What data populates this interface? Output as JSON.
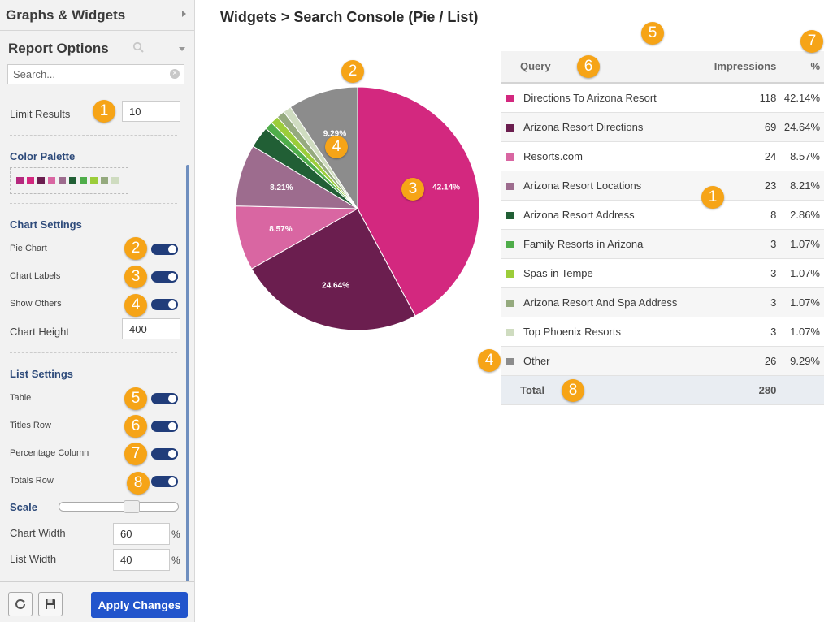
{
  "sidebar": {
    "header_title": "Graphs & Widgets",
    "report_options_title": "Report Options",
    "search_placeholder": "Search...",
    "limit_results": {
      "label": "Limit Results",
      "value": "10"
    },
    "color_palette": {
      "title": "Color Palette",
      "colors": [
        "#b5297e",
        "#d3287f",
        "#6b1e4f",
        "#d966a2",
        "#9d6c8e",
        "#215f35",
        "#4fad4a",
        "#9ccd3a",
        "#95aa7e",
        "#cfdcc0"
      ]
    },
    "chart_settings": {
      "title": "Chart Settings",
      "pie_chart": "Pie Chart",
      "chart_labels": "Chart Labels",
      "show_others": "Show Others",
      "chart_height_label": "Chart Height",
      "chart_height_value": "400"
    },
    "list_settings": {
      "title": "List Settings",
      "table": "Table",
      "titles_row": "Titles Row",
      "percentage_column": "Percentage Column",
      "totals_row": "Totals Row",
      "scale_label": "Scale",
      "scale_value": 0.6,
      "chart_width_label": "Chart Width",
      "chart_width_value": "60",
      "list_width_label": "List Width",
      "list_width_value": "40",
      "pct_sign": "%"
    },
    "apply_label": "Apply Changes"
  },
  "main": {
    "title": "Widgets > Search Console (Pie / List)"
  },
  "badges": {
    "n1": "1",
    "n2": "2",
    "n3": "3",
    "n4": "4",
    "n5": "5",
    "n6": "6",
    "n7": "7",
    "n8": "8"
  },
  "chart_data": {
    "type": "pie",
    "categories": [
      "Directions To Arizona Resort",
      "Arizona Resort Directions",
      "Resorts.com",
      "Arizona Resort Locations",
      "Arizona Resort Address",
      "Family Resorts in Arizona",
      "Spas in Tempe",
      "Arizona Resort And Spa Address",
      "Top Phoenix Resorts",
      "Other"
    ],
    "values": [
      118,
      69,
      24,
      23,
      8,
      3,
      3,
      3,
      3,
      26
    ],
    "colors": [
      "#d3287f",
      "#6b1e4f",
      "#d966a2",
      "#9d6c8e",
      "#215f35",
      "#4fad4a",
      "#9ccd3a",
      "#95aa7e",
      "#cfdcc0",
      "#8c8c8c"
    ],
    "labels": [
      "42.14%",
      "24.64%",
      "8.57%",
      "8.21%",
      "",
      "",
      "",
      "",
      "",
      "9.29%"
    ]
  },
  "table": {
    "headers": {
      "query": "Query",
      "impressions": "Impressions",
      "pct": "%"
    },
    "rows": [
      {
        "query": "Directions To Arizona Resort",
        "impressions": "118",
        "pct": "42.14%",
        "color": "#d3287f"
      },
      {
        "query": "Arizona Resort Directions",
        "impressions": "69",
        "pct": "24.64%",
        "color": "#6b1e4f"
      },
      {
        "query": "Resorts.com",
        "impressions": "24",
        "pct": "8.57%",
        "color": "#d966a2"
      },
      {
        "query": "Arizona Resort Locations",
        "impressions": "23",
        "pct": "8.21%",
        "color": "#9d6c8e"
      },
      {
        "query": "Arizona Resort Address",
        "impressions": "8",
        "pct": "2.86%",
        "color": "#215f35"
      },
      {
        "query": "Family Resorts in Arizona",
        "impressions": "3",
        "pct": "1.07%",
        "color": "#4fad4a"
      },
      {
        "query": "Spas in Tempe",
        "impressions": "3",
        "pct": "1.07%",
        "color": "#9ccd3a"
      },
      {
        "query": "Arizona Resort And Spa Address",
        "impressions": "3",
        "pct": "1.07%",
        "color": "#95aa7e"
      },
      {
        "query": "Top Phoenix Resorts",
        "impressions": "3",
        "pct": "1.07%",
        "color": "#cfdcc0"
      },
      {
        "query": "Other",
        "impressions": "26",
        "pct": "9.29%",
        "color": "#8c8c8c"
      }
    ],
    "total": {
      "label": "Total",
      "impressions": "280"
    }
  }
}
